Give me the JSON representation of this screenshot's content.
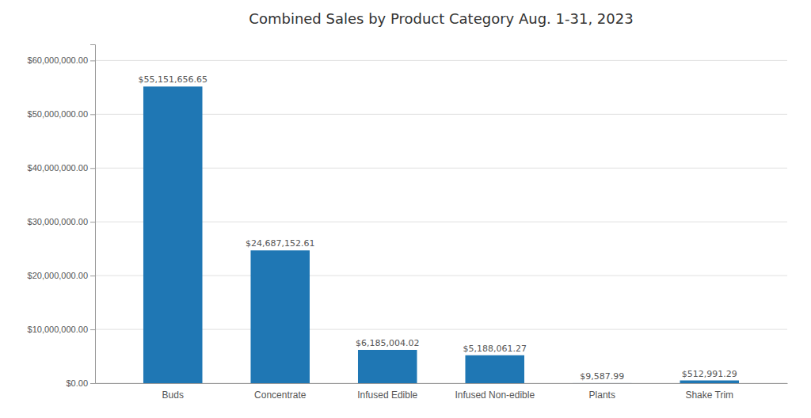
{
  "chart_data": {
    "type": "bar",
    "title": "Combined Sales by Product Category Aug. 1-31, 2023",
    "categories": [
      "Buds",
      "Concentrate",
      "Infused Edible",
      "Infused Non-edible",
      "Plants",
      "Shake Trim"
    ],
    "values": [
      55151656.65,
      24687152.61,
      6185004.02,
      5188061.27,
      9587.99,
      512991.29
    ],
    "value_labels": [
      "$55,151,656.65",
      "$24,687,152.61",
      "$6,185,004.02",
      "$5,188,061.27",
      "$9,587.99",
      "$512,991.29"
    ],
    "data_labels": true,
    "ylim": [
      0,
      63000000
    ],
    "yticks": [
      {
        "value": 0,
        "label": "$0.00"
      },
      {
        "value": 10000000,
        "label": "$10,000,000.00"
      },
      {
        "value": 20000000,
        "label": "$20,000,000.00"
      },
      {
        "value": 30000000,
        "label": "$30,000,000.00"
      },
      {
        "value": 40000000,
        "label": "$40,000,000.00"
      },
      {
        "value": 50000000,
        "label": "$50,000,000.00"
      },
      {
        "value": 60000000,
        "label": "$60,000,000.00"
      }
    ],
    "grid": true
  }
}
